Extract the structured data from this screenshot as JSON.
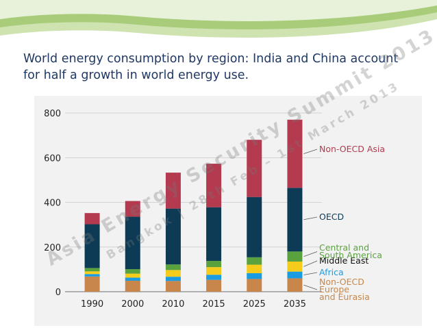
{
  "slide": {
    "title": "World energy consumption by region: India and China account for half a growth in world energy use."
  },
  "watermark": {
    "line1": "Asia Energy Security Summit 2013",
    "line2": "Bangkok | 28th Feb – 1st March 2013"
  },
  "colors": {
    "non_oecd_europe_eurasia": "#c8864a",
    "africa": "#1b9be0",
    "middle_east": "#f5cc1c",
    "central_south_america": "#5aa23e",
    "oecd": "#0d3a55",
    "non_oecd_asia": "#b33a4f",
    "label_text_dark": "#111111"
  },
  "chart_data": {
    "type": "bar",
    "stacked": true,
    "categories": [
      "1990",
      "2000",
      "2010",
      "2015",
      "2025",
      "2035"
    ],
    "ylim": [
      0,
      800
    ],
    "yticks": [
      "0",
      "200",
      "400",
      "600",
      "800"
    ],
    "grid": true,
    "legend_placement": "right (labels beside last bar)",
    "series": [
      {
        "name": "Non-OECD Europe and Eurasia",
        "label_lines": [
          "Non-OECD",
          "Europe",
          "and Eurasia"
        ],
        "color": "#c8864a",
        "values": [
          68,
          49,
          48,
          53,
          57,
          60
        ]
      },
      {
        "name": "Africa",
        "label_lines": [
          "Africa"
        ],
        "color": "#1b9be0",
        "values": [
          11,
          14,
          19,
          23,
          26,
          30
        ]
      },
      {
        "name": "Middle East",
        "label_lines": [
          "Middle East"
        ],
        "color": "#f5cc1c",
        "values": [
          12,
          18,
          30,
          34,
          38,
          45
        ]
      },
      {
        "name": "Central and South America",
        "label_lines": [
          "Central and",
          "South America"
        ],
        "color": "#5aa23e",
        "values": [
          15,
          20,
          25,
          28,
          33,
          45
        ]
      },
      {
        "name": "OECD",
        "label_lines": [
          "OECD"
        ],
        "color": "#0d3a55",
        "values": [
          196,
          235,
          250,
          240,
          270,
          285
        ]
      },
      {
        "name": "Non-OECD Asia",
        "label_lines": [
          "Non-OECD Asia"
        ],
        "color": "#b33a4f",
        "values": [
          50,
          70,
          161,
          195,
          256,
          305
        ]
      }
    ]
  }
}
